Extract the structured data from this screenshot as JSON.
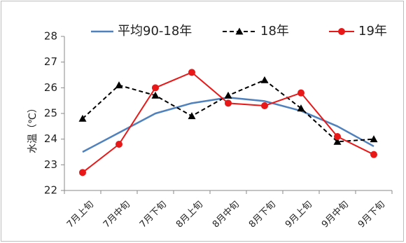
{
  "chart_data": {
    "type": "line",
    "title": "",
    "xlabel": "",
    "ylabel": "水温（℃）",
    "ylim": [
      22,
      28
    ],
    "yticks": [
      "22",
      "23",
      "24",
      "25",
      "26",
      "27",
      "28"
    ],
    "categories": [
      "7月上旬",
      "7月中旬",
      "7月下旬",
      "8月上旬",
      "8月中旬",
      "8月下旬",
      "9月上旬",
      "9月中旬",
      "9月下旬"
    ],
    "grid": false,
    "legend_position": "top",
    "series": [
      {
        "name": "平均90-18年",
        "color": "#4f81bd",
        "style": "solid",
        "marker": "none",
        "values": [
          23.5,
          24.25,
          25.0,
          25.4,
          25.62,
          25.48,
          25.1,
          24.5,
          23.72
        ]
      },
      {
        "name": "18年",
        "color": "#000000",
        "style": "dashed",
        "marker": "triangle",
        "values": [
          24.8,
          26.1,
          25.7,
          24.9,
          25.7,
          26.3,
          25.2,
          23.9,
          24.0
        ]
      },
      {
        "name": "19年",
        "color": "#e81818",
        "style": "solid",
        "marker": "circle",
        "values": [
          22.7,
          23.8,
          26.0,
          26.6,
          25.4,
          25.3,
          25.8,
          24.1,
          23.4
        ]
      }
    ]
  }
}
